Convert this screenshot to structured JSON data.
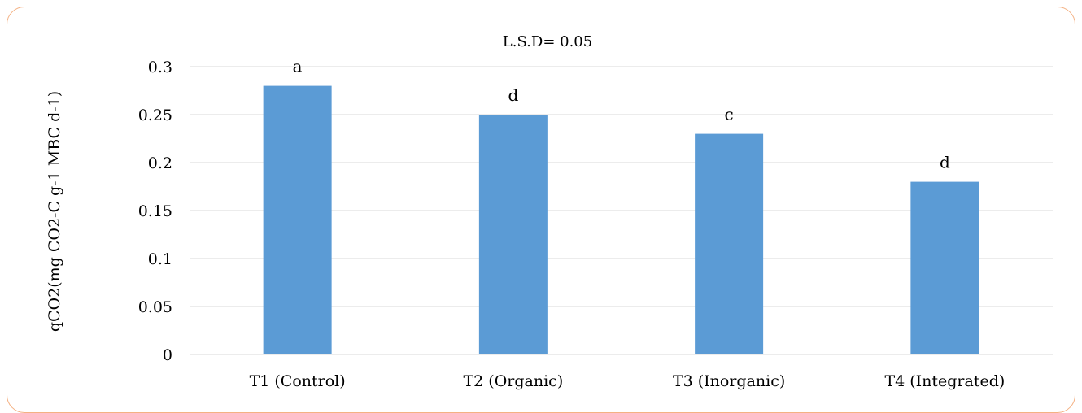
{
  "chart_data": {
    "type": "bar",
    "title": "L.S.D= 0.05",
    "ylabel": "qCO2(mg CO2-C g-1 MBC d-1)",
    "xlabel": "",
    "categories": [
      "T1 (Control)",
      "T2 (Organic)",
      "T3 (Inorganic)",
      "T4 (Integrated)"
    ],
    "values": [
      0.28,
      0.25,
      0.23,
      0.18
    ],
    "data_labels": [
      "a",
      "d",
      "c",
      "d"
    ],
    "yticks": [
      "0",
      "0.05",
      "0.1",
      "0.15",
      "0.2",
      "0.25",
      "0.3"
    ],
    "ylim": [
      0,
      0.3
    ],
    "grid": true,
    "legend": "none",
    "bar_color": "#5b9bd5",
    "grid_color": "#d9d9d9",
    "border_color": "#f4b183"
  }
}
